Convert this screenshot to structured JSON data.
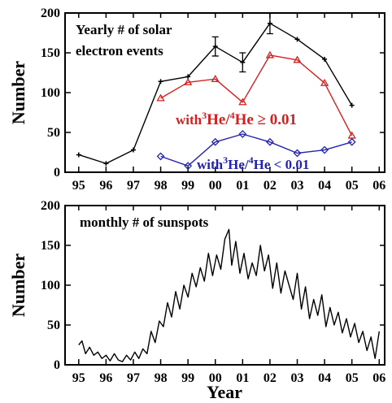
{
  "chart_data": [
    {
      "type": "line",
      "xlabel": "",
      "ylabel": "Number",
      "ylim": [
        0,
        200
      ],
      "xlim": [
        94.5,
        106.2
      ],
      "x_ticks": [
        95,
        96,
        97,
        98,
        99,
        100,
        101,
        102,
        103,
        104,
        105,
        106
      ],
      "x_tick_labels": [
        "95",
        "96",
        "97",
        "98",
        "99",
        "00",
        "01",
        "02",
        "03",
        "04",
        "05",
        "06"
      ],
      "y_ticks": [
        0,
        50,
        100,
        150,
        200
      ],
      "y_tick_labels": [
        "0",
        "50",
        "100",
        "150",
        "200"
      ],
      "annotation": {
        "line1": "Yearly # of solar",
        "line2": "electron events"
      },
      "series": [
        {
          "color": "#000000",
          "marker": "plus",
          "x": [
            95,
            96,
            97,
            98,
            99,
            100,
            101,
            102,
            103,
            104,
            105
          ],
          "y": [
            22,
            11,
            28,
            114,
            120,
            158,
            138,
            187,
            167,
            142,
            84
          ],
          "err": [
            0,
            0,
            0,
            0,
            0,
            12,
            12,
            13,
            0,
            0,
            0
          ]
        },
        {
          "color": "#d42020",
          "marker": "triangle",
          "label_parts": [
            "with",
            "3",
            "He/",
            "4",
            "He ≥ 0.01"
          ],
          "x": [
            98,
            99,
            100,
            101,
            102,
            103,
            104,
            105
          ],
          "y": [
            93,
            113,
            117,
            88,
            147,
            141,
            112,
            46
          ]
        },
        {
          "color": "#2323b0",
          "marker": "diamond",
          "label_parts": [
            "with",
            "3",
            "He/",
            "4",
            "He < 0.01"
          ],
          "x": [
            98,
            99,
            100,
            101,
            102,
            103,
            104,
            105
          ],
          "y": [
            20,
            8,
            38,
            48,
            38,
            24,
            28,
            38
          ]
        }
      ]
    },
    {
      "type": "line",
      "xlabel": "Year",
      "ylabel": "Number",
      "ylim": [
        0,
        200
      ],
      "xlim": [
        94.5,
        106.2
      ],
      "x_ticks": [
        95,
        96,
        97,
        98,
        99,
        100,
        101,
        102,
        103,
        104,
        105,
        106
      ],
      "x_tick_labels": [
        "95",
        "96",
        "97",
        "98",
        "99",
        "00",
        "01",
        "02",
        "03",
        "04",
        "05",
        "06"
      ],
      "y_ticks": [
        0,
        50,
        100,
        150,
        200
      ],
      "y_tick_labels": [
        "0",
        "50",
        "100",
        "150",
        "200"
      ],
      "annotation": {
        "line1": "monthly # of sunspots"
      },
      "series": [
        {
          "color": "#000000",
          "marker": "none",
          "x": [
            95.0,
            95.12,
            95.25,
            95.4,
            95.55,
            95.7,
            95.85,
            96.0,
            96.15,
            96.3,
            96.45,
            96.6,
            96.75,
            96.9,
            97.05,
            97.2,
            97.35,
            97.5,
            97.65,
            97.8,
            97.95,
            98.1,
            98.25,
            98.4,
            98.55,
            98.7,
            98.85,
            99.0,
            99.15,
            99.3,
            99.45,
            99.6,
            99.75,
            99.9,
            100.05,
            100.2,
            100.35,
            100.5,
            100.6,
            100.75,
            100.9,
            101.05,
            101.2,
            101.35,
            101.5,
            101.65,
            101.8,
            101.95,
            102.1,
            102.25,
            102.4,
            102.55,
            102.7,
            102.85,
            103.0,
            103.15,
            103.3,
            103.45,
            103.6,
            103.75,
            103.9,
            104.05,
            104.2,
            104.35,
            104.5,
            104.65,
            104.8,
            104.95,
            105.1,
            105.25,
            105.4,
            105.55,
            105.7,
            105.85,
            106.0
          ],
          "y": [
            25,
            30,
            14,
            22,
            12,
            16,
            8,
            12,
            5,
            14,
            6,
            4,
            12,
            6,
            16,
            8,
            20,
            14,
            42,
            28,
            55,
            48,
            78,
            60,
            92,
            70,
            100,
            85,
            115,
            98,
            122,
            105,
            140,
            112,
            138,
            120,
            158,
            170,
            125,
            155,
            115,
            140,
            108,
            128,
            112,
            150,
            118,
            138,
            96,
            128,
            90,
            118,
            100,
            82,
            115,
            70,
            98,
            58,
            82,
            62,
            88,
            48,
            72,
            50,
            66,
            40,
            58,
            35,
            52,
            28,
            42,
            18,
            35,
            8,
            42
          ]
        }
      ]
    }
  ]
}
